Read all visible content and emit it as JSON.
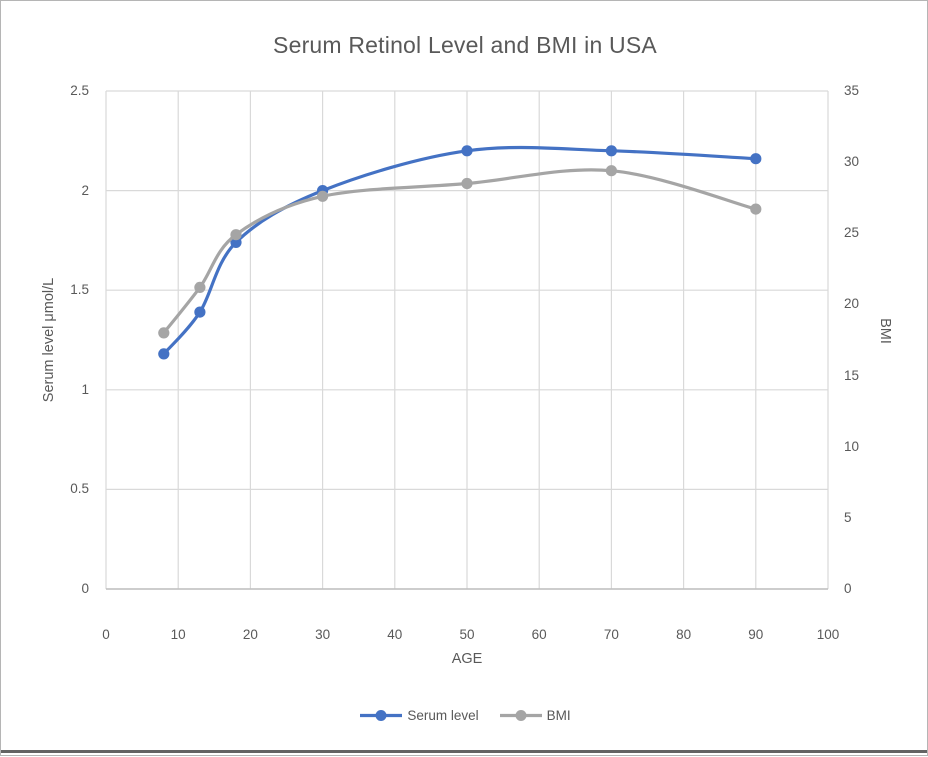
{
  "chart_data": {
    "type": "line",
    "title": "Serum Retinol Level and BMI in USA",
    "xlabel": "AGE",
    "ylabel_left": "Serum level μmol/L",
    "ylabel_right": "BMI",
    "xlim": [
      0,
      100
    ],
    "ylim_left": [
      0,
      2.5
    ],
    "ylim_right": [
      0,
      35
    ],
    "xticks": [
      0,
      10,
      20,
      30,
      40,
      50,
      60,
      70,
      80,
      90,
      100
    ],
    "yticks_left": [
      0,
      0.5,
      1,
      1.5,
      2,
      2.5
    ],
    "yticks_right": [
      0,
      5,
      10,
      15,
      20,
      25,
      30,
      35
    ],
    "grid": true,
    "legend_position": "bottom",
    "x": [
      8,
      13,
      18,
      30,
      50,
      70,
      90
    ],
    "series": [
      {
        "name": "Serum level",
        "axis": "left",
        "color": "#4472C4",
        "marker": "circle",
        "smooth": true,
        "values": [
          1.18,
          1.39,
          1.74,
          2.0,
          2.2,
          2.2,
          2.16
        ]
      },
      {
        "name": "BMI",
        "axis": "right",
        "color": "#A5A5A5",
        "marker": "circle",
        "smooth": true,
        "values": [
          18,
          21.2,
          24.9,
          27.6,
          28.5,
          29.4,
          26.7
        ]
      }
    ],
    "colors": {
      "grid": "#D9D9D9",
      "axis_line": "#BFBFBF",
      "text": "#595959"
    }
  }
}
